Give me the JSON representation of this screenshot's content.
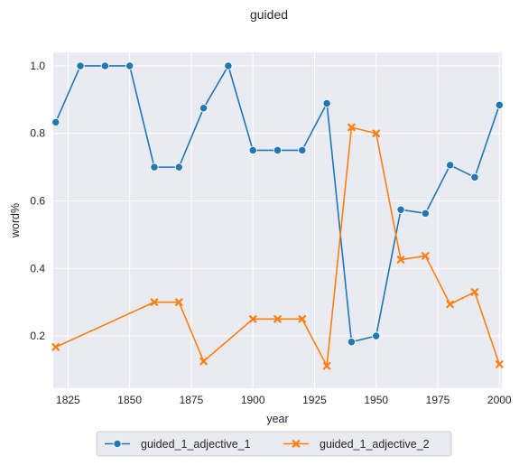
{
  "chart_data": {
    "type": "line",
    "title": "guided",
    "xlabel": "year",
    "ylabel": "word%",
    "xlim": [
      1819,
      2001
    ],
    "ylim": [
      0.045,
      1.04
    ],
    "xticks": [
      1825,
      1850,
      1875,
      1900,
      1925,
      1950,
      1975,
      2000
    ],
    "yticks": [
      0.2,
      0.4,
      0.6,
      0.8,
      1.0
    ],
    "ytick_labels": [
      "0.2",
      "0.4",
      "0.6",
      "0.8",
      "1.0"
    ],
    "grid": true,
    "legend_position": "bottom-center",
    "series": [
      {
        "name": "guided_1_adjective_1",
        "color": "#1f77b4",
        "marker": "circle",
        "x": [
          1820,
          1830,
          1840,
          1850,
          1860,
          1870,
          1880,
          1890,
          1900,
          1910,
          1920,
          1930,
          1940,
          1950,
          1960,
          1970,
          1980,
          1990,
          2000
        ],
        "y": [
          0.833,
          1.0,
          1.0,
          1.0,
          0.7,
          0.7,
          0.875,
          1.0,
          0.75,
          0.75,
          0.75,
          0.889,
          0.182,
          0.2,
          0.574,
          0.563,
          0.706,
          0.67,
          0.884
        ]
      },
      {
        "name": "guided_1_adjective_2",
        "color": "#ff7f0e",
        "marker": "x",
        "x": [
          1820,
          1860,
          1870,
          1880,
          1900,
          1910,
          1920,
          1930,
          1940,
          1950,
          1960,
          1970,
          1980,
          1990,
          2000
        ],
        "y": [
          0.167,
          0.3,
          0.3,
          0.125,
          0.25,
          0.25,
          0.25,
          0.111,
          0.818,
          0.8,
          0.426,
          0.437,
          0.294,
          0.33,
          0.116
        ]
      }
    ]
  }
}
